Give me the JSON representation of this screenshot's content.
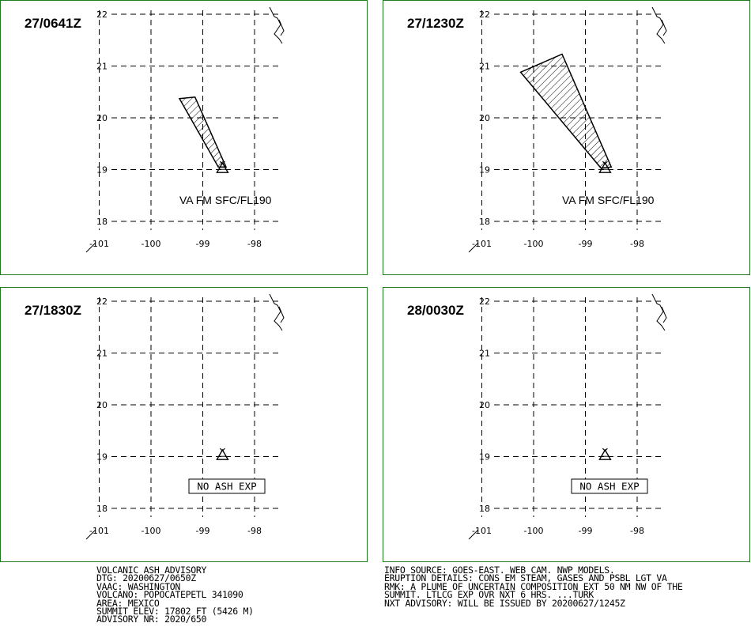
{
  "panels": [
    {
      "id": "p1",
      "time": "27/0641Z",
      "label": "VA FM SFC/FL190",
      "plume": [
        [
          -99.45,
          20.37
        ],
        [
          -99.15,
          20.4
        ],
        [
          -98.55,
          19.05
        ],
        [
          -98.7,
          19.05
        ]
      ],
      "no_ash": ""
    },
    {
      "id": "p2",
      "time": "27/1230Z",
      "label": "VA FM SFC/FL190",
      "plume": [
        [
          -100.25,
          20.88
        ],
        [
          -99.45,
          21.23
        ],
        [
          -98.5,
          19.05
        ],
        [
          -98.7,
          19.03
        ]
      ],
      "no_ash": ""
    },
    {
      "id": "p3",
      "time": "27/1830Z",
      "label": "",
      "plume": [],
      "no_ash": "NO ASH EXP"
    },
    {
      "id": "p4",
      "time": "28/0030Z",
      "label": "",
      "plume": [],
      "no_ash": "NO ASH EXP"
    }
  ],
  "map": {
    "lat_ticks": [
      "22",
      "21",
      "20",
      "19",
      "18"
    ],
    "lon_ticks": [
      "-101",
      "-100",
      "-99",
      "-98"
    ],
    "volcano": {
      "lon": -98.62,
      "lat": 19.02
    }
  },
  "advisory": {
    "left": [
      "VOLCANIC ASH ADVISORY",
      "DTG: 20200627/0650Z",
      "VAAC: WASHINGTON",
      "VOLCANO: POPOCATEPETL 341090",
      "AREA: MEXICO",
      "SUMMIT ELEV: 17802 FT (5426 M)",
      "ADVISORY NR: 2020/650"
    ],
    "right": [
      "INFO SOURCE: GOES-EAST. WEB CAM. NWP MODELS.",
      "ERUPTION DETAILS: CONS EM STEAM, GASES AND PSBL LGT VA",
      "RMK: A PLUME OF UNCERTAIN COMPOSITION EXT 50 NM NW OF THE",
      "SUMMIT. LTLCG EXP OVR NXT 6 HRS. ...TURK",
      "NXT ADVISORY: WILL BE ISSUED BY 20200627/1245Z"
    ]
  }
}
